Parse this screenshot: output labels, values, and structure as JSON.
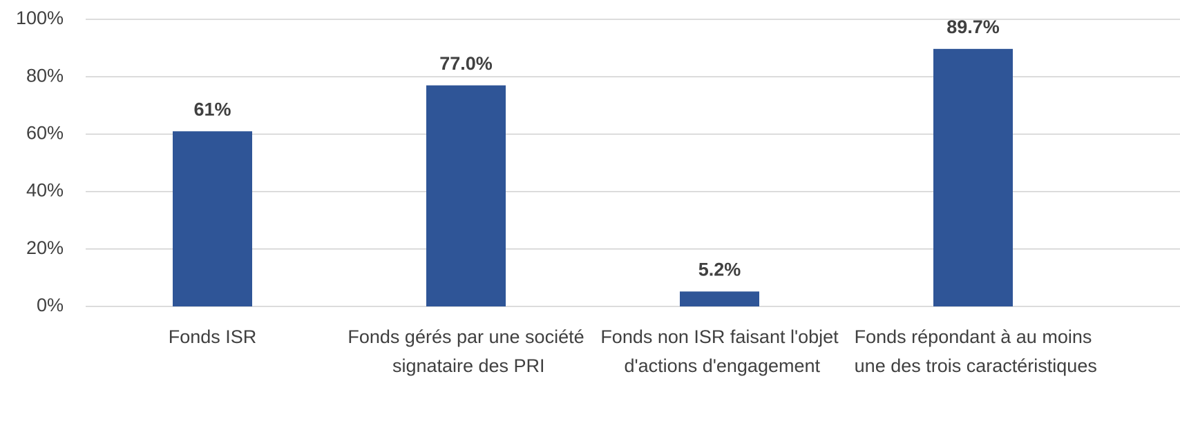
{
  "chart_data": {
    "type": "bar",
    "categories": [
      "Fonds ISR",
      "Fonds gérés par une société signataire des PRI",
      "Fonds non ISR faisant l'objet d'actions d'engagement",
      "Fonds répondant à au moins une des trois caractéristiques"
    ],
    "values": [
      61,
      77.0,
      5.2,
      89.7
    ],
    "value_labels": [
      "61%",
      "77.0%",
      "5.2%",
      "89.7%"
    ],
    "color": "#2f5597",
    "ylim": [
      0,
      100
    ],
    "yticks": [
      {
        "value": 0,
        "label": "0%"
      },
      {
        "value": 20,
        "label": "20%"
      },
      {
        "value": 40,
        "label": "40%"
      },
      {
        "value": 60,
        "label": "60%"
      },
      {
        "value": 80,
        "label": "80%"
      },
      {
        "value": 100,
        "label": "100%"
      }
    ],
    "grid": true
  }
}
